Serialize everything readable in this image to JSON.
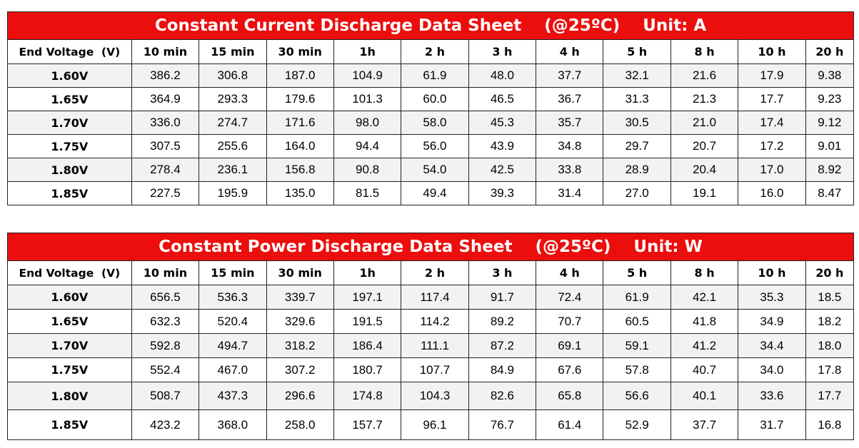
{
  "tables": [
    {
      "title": "Constant Current Discharge Data Sheet    (@25ºC)    Unit: A",
      "headers": [
        "End Voltage  (V)",
        "10 min",
        "15 min",
        "30 min",
        "1h",
        "2 h",
        "3 h",
        "4 h",
        "5 h",
        "8 h",
        "10 h",
        "20 h"
      ],
      "rows": [
        [
          "1.60V",
          "386.2",
          "306.8",
          "187.0",
          "104.9",
          "61.9",
          "48.0",
          "37.7",
          "32.1",
          "21.6",
          "17.9",
          "9.38"
        ],
        [
          "1.65V",
          "364.9",
          "293.3",
          "179.6",
          "101.3",
          "60.0",
          "46.5",
          "36.7",
          "31.3",
          "21.3",
          "17.7",
          "9.23"
        ],
        [
          "1.70V",
          "336.0",
          "274.7",
          "171.6",
          "98.0",
          "58.0",
          "45.3",
          "35.7",
          "30.5",
          "21.0",
          "17.4",
          "9.12"
        ],
        [
          "1.75V",
          "307.5",
          "255.6",
          "164.0",
          "94.4",
          "56.0",
          "43.9",
          "34.8",
          "29.7",
          "20.7",
          "17.2",
          "9.01"
        ],
        [
          "1.80V",
          "278.4",
          "236.1",
          "156.8",
          "90.8",
          "54.0",
          "42.5",
          "33.8",
          "28.9",
          "20.4",
          "17.0",
          "8.92"
        ],
        [
          "1.85V",
          "227.5",
          "195.9",
          "135.0",
          "81.5",
          "49.4",
          "39.3",
          "31.4",
          "27.0",
          "19.1",
          "16.0",
          "8.47"
        ]
      ]
    },
    {
      "title": "Constant Power Discharge Data Sheet    (@25ºC)    Unit: W",
      "headers": [
        "End Voltage  (V)",
        "10 min",
        "15 min",
        "30 min",
        "1h",
        "2 h",
        "3 h",
        "4 h",
        "5 h",
        "8 h",
        "10 h",
        "20 h"
      ],
      "rows": [
        [
          "1.60V",
          "656.5",
          "536.3",
          "339.7",
          "197.1",
          "117.4",
          "91.7",
          "72.4",
          "61.9",
          "42.1",
          "35.3",
          "18.5"
        ],
        [
          "1.65V",
          "632.3",
          "520.4",
          "329.6",
          "191.5",
          "114.2",
          "89.2",
          "70.7",
          "60.5",
          "41.8",
          "34.9",
          "18.2"
        ],
        [
          "1.70V",
          "592.8",
          "494.7",
          "318.2",
          "186.4",
          "111.1",
          "87.2",
          "69.1",
          "59.1",
          "41.2",
          "34.4",
          "18.0"
        ],
        [
          "1.75V",
          "552.4",
          "467.0",
          "307.2",
          "180.7",
          "107.7",
          "84.9",
          "67.6",
          "57.8",
          "40.7",
          "34.0",
          "17.8"
        ],
        [
          "1.80V",
          "508.7",
          "437.3",
          "296.6",
          "174.8",
          "104.3",
          "82.6",
          "65.8",
          "56.6",
          "40.1",
          "33.6",
          "17.7"
        ],
        [
          "1.85V",
          "423.2",
          "368.0",
          "258.0",
          "157.7",
          "96.1",
          "76.7",
          "61.4",
          "52.9",
          "37.7",
          "31.7",
          "16.8"
        ]
      ]
    }
  ],
  "colors": {
    "title_bg": "#ec0d0d",
    "title_text": "#ffffff",
    "stripe": "#f2f2f2",
    "border": "#222222"
  }
}
